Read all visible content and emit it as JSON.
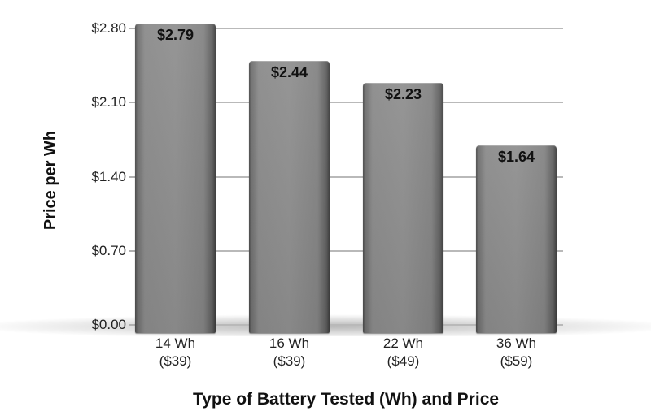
{
  "chart_data": {
    "type": "bar",
    "title": "",
    "xlabel": "Type of Battery Tested (Wh) and Price",
    "ylabel": "Price per Wh",
    "ylim": [
      0,
      2.8
    ],
    "yticks": [
      "$0.00",
      "$0.70",
      "$1.40",
      "$2.10",
      "$2.80"
    ],
    "ytick_values": [
      0,
      0.7,
      1.4,
      2.1,
      2.8
    ],
    "grid": true,
    "legend": null,
    "categories": [
      "14 Wh ($39)",
      "16 Wh ($39)",
      "22 Wh ($49)",
      "36 Wh ($59)"
    ],
    "category_lines": [
      {
        "line1": "14 Wh",
        "line2": "($39)"
      },
      {
        "line1": "16 Wh",
        "line2": "($39)"
      },
      {
        "line1": "22 Wh",
        "line2": "($49)"
      },
      {
        "line1": "36 Wh",
        "line2": "($59)"
      }
    ],
    "values": [
      2.79,
      2.44,
      2.23,
      1.64
    ],
    "value_labels": [
      "$2.79",
      "$2.44",
      "$2.23",
      "$1.64"
    ],
    "bar_color": "#8c8c8c"
  }
}
